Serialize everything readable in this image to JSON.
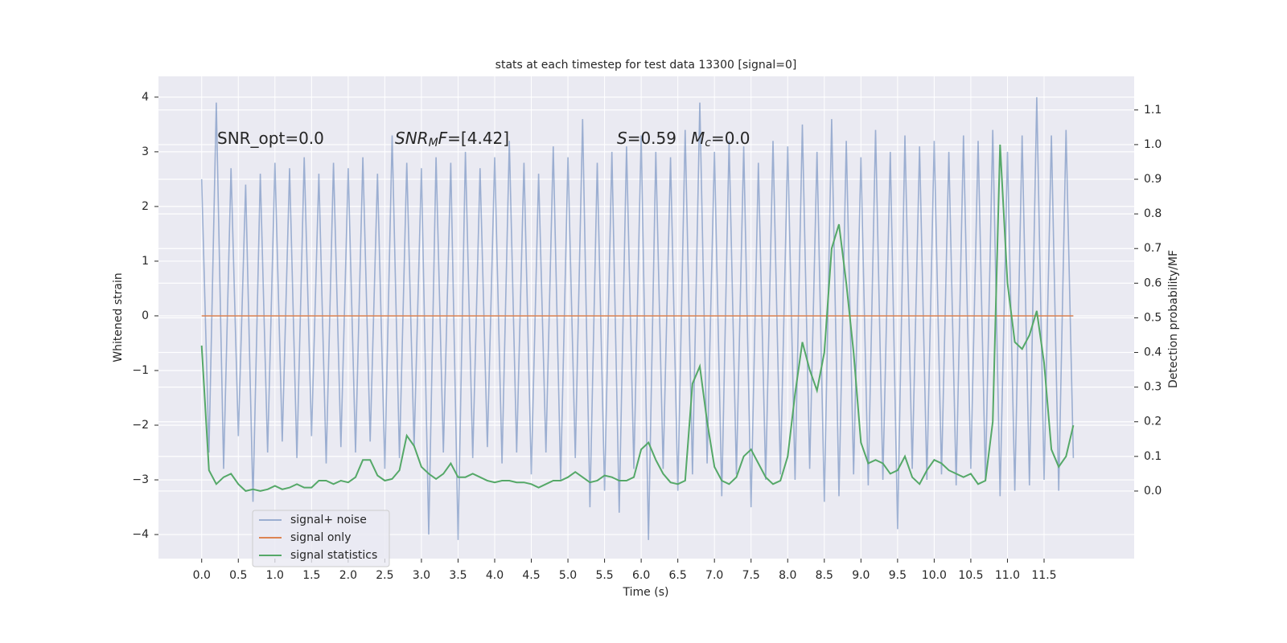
{
  "chart_data": {
    "type": "line",
    "title": "stats at each timestep for test data 13300 [signal=0]",
    "xlabel": "Time (s)",
    "ylabel": "Whitened strain",
    "y2label": "Detection probability/MF",
    "annotations": [
      [
        {
          "text": "SNR_opt=0.0",
          "style": "normal"
        }
      ],
      [
        {
          "text": "SNR",
          "style": "italic"
        },
        {
          "text": "M",
          "style": "sub"
        },
        {
          "text": "F",
          "style": "italic"
        },
        {
          "text": "=[4.42]",
          "style": "normal"
        }
      ],
      [
        {
          "text": "S",
          "style": "italic"
        },
        {
          "text": "=0.59",
          "style": "normal"
        }
      ],
      [
        {
          "text": "M",
          "style": "italic"
        },
        {
          "text": "c",
          "style": "sub"
        },
        {
          "text": "=0.0",
          "style": "normal"
        }
      ]
    ],
    "x": [
      0,
      0.1,
      0.2,
      0.3,
      0.4,
      0.5,
      0.6,
      0.7,
      0.8,
      0.9,
      1,
      1.1,
      1.2,
      1.3,
      1.4,
      1.5,
      1.6,
      1.7,
      1.8,
      1.9,
      2,
      2.1,
      2.2,
      2.3,
      2.4,
      2.5,
      2.6,
      2.7,
      2.8,
      2.9,
      3,
      3.1,
      3.2,
      3.3,
      3.4,
      3.5,
      3.6,
      3.7,
      3.8,
      3.9,
      4,
      4.1,
      4.2,
      4.3,
      4.4,
      4.5,
      4.6,
      4.7,
      4.8,
      4.9,
      5,
      5.1,
      5.2,
      5.3,
      5.4,
      5.5,
      5.6,
      5.7,
      5.8,
      5.9,
      6,
      6.1,
      6.2,
      6.3,
      6.4,
      6.5,
      6.6,
      6.7,
      6.8,
      6.9,
      7,
      7.1,
      7.2,
      7.3,
      7.4,
      7.5,
      7.6,
      7.7,
      7.8,
      7.9,
      8,
      8.1,
      8.2,
      8.3,
      8.4,
      8.5,
      8.6,
      8.7,
      8.8,
      8.9,
      9,
      9.1,
      9.2,
      9.3,
      9.4,
      9.5,
      9.6,
      9.7,
      9.8,
      9.9,
      10,
      10.1,
      10.2,
      10.3,
      10.4,
      10.5,
      10.6,
      10.7,
      10.8,
      10.9,
      11,
      11.1,
      11.2,
      11.3,
      11.4,
      11.5,
      11.6,
      11.7,
      11.8,
      11.9
    ],
    "series": [
      {
        "name": "signal+ noise",
        "color": "#4c72b0",
        "alpha": 0.5,
        "axis": "y",
        "values": [
          2.5,
          -2.5,
          3.9,
          -2.8,
          2.7,
          -2.2,
          2.4,
          -3.4,
          2.6,
          -2.5,
          2.8,
          -2.3,
          2.7,
          -2.6,
          2.9,
          -2.2,
          2.6,
          -2.7,
          2.8,
          -2.4,
          2.7,
          -2.5,
          2.9,
          -2.3,
          2.6,
          -2.8,
          3.3,
          -2.6,
          2.8,
          -2.4,
          2.7,
          -4.0,
          2.9,
          -2.5,
          2.8,
          -4.1,
          3.0,
          -2.6,
          2.7,
          -2.4,
          2.9,
          -2.7,
          3.2,
          -2.5,
          2.8,
          -2.9,
          2.6,
          -2.5,
          3.1,
          -3.0,
          2.9,
          -2.6,
          3.6,
          -3.5,
          2.8,
          -3.2,
          3.0,
          -3.6,
          3.1,
          -2.8,
          3.3,
          -4.1,
          3.0,
          -2.8,
          2.9,
          -3.2,
          3.4,
          -2.9,
          3.9,
          -2.7,
          3.0,
          -3.3,
          3.2,
          -2.9,
          3.1,
          -3.5,
          2.8,
          -3.0,
          3.2,
          -2.9,
          3.1,
          -3.0,
          3.5,
          -2.8,
          3.0,
          -3.4,
          3.6,
          -3.3,
          3.2,
          -2.9,
          2.9,
          -3.1,
          3.4,
          -3.0,
          3.0,
          -3.9,
          3.3,
          -2.8,
          3.1,
          -3.0,
          3.2,
          -2.9,
          3.0,
          -3.1,
          3.3,
          -2.8,
          3.2,
          -3.0,
          3.4,
          -3.3,
          3.0,
          -3.2,
          3.3,
          -3.1,
          4.0,
          -3.0,
          3.3,
          -3.2,
          3.4,
          -2.6
        ]
      },
      {
        "name": "signal only",
        "color": "#dd8452",
        "alpha": 1,
        "axis": "y",
        "x": [
          0,
          11.9
        ],
        "values": [
          0,
          0
        ]
      },
      {
        "name": "signal statistics",
        "color": "#55a868",
        "alpha": 1,
        "axis": "y2",
        "values": [
          0.42,
          0.06,
          0.02,
          0.04,
          0.05,
          0.02,
          0,
          0.005,
          0,
          0.005,
          0.015,
          0.005,
          0.01,
          0.02,
          0.01,
          0.01,
          0.03,
          0.03,
          0.02,
          0.03,
          0.025,
          0.04,
          0.09,
          0.09,
          0.045,
          0.03,
          0.035,
          0.06,
          0.16,
          0.13,
          0.07,
          0.05,
          0.035,
          0.05,
          0.08,
          0.04,
          0.04,
          0.05,
          0.04,
          0.03,
          0.025,
          0.03,
          0.03,
          0.025,
          0.025,
          0.02,
          0.01,
          0.02,
          0.03,
          0.03,
          0.04,
          0.055,
          0.04,
          0.025,
          0.03,
          0.045,
          0.04,
          0.03,
          0.03,
          0.04,
          0.12,
          0.14,
          0.09,
          0.05,
          0.025,
          0.02,
          0.03,
          0.31,
          0.36,
          0.2,
          0.07,
          0.03,
          0.02,
          0.04,
          0.1,
          0.12,
          0.08,
          0.04,
          0.02,
          0.03,
          0.1,
          0.28,
          0.43,
          0.35,
          0.29,
          0.4,
          0.7,
          0.77,
          0.6,
          0.4,
          0.14,
          0.08,
          0.09,
          0.08,
          0.05,
          0.06,
          0.1,
          0.04,
          0.02,
          0.06,
          0.09,
          0.08,
          0.06,
          0.05,
          0.04,
          0.05,
          0.02,
          0.03,
          0.2,
          1.0,
          0.6,
          0.43,
          0.41,
          0.45,
          0.52,
          0.37,
          0.12,
          0.07,
          0.1,
          0.19
        ]
      }
    ],
    "xlim": [
      -0.59,
      12.73
    ],
    "xticks": [
      {
        "value": 0,
        "label": "0.0"
      },
      0.5,
      {
        "value": 1,
        "label": "1.0"
      },
      1.5,
      {
        "value": 2,
        "label": "2.0"
      },
      2.5,
      {
        "value": 3,
        "label": "3.0"
      },
      3.5,
      {
        "value": 4,
        "label": "4.0"
      },
      4.5,
      {
        "value": 5,
        "label": "5.0"
      },
      5.5,
      {
        "value": 6,
        "label": "6.0"
      },
      6.5,
      {
        "value": 7,
        "label": "7.0"
      },
      7.5,
      {
        "value": 8,
        "label": "8.0"
      },
      8.5,
      {
        "value": 9,
        "label": "9.0"
      },
      9.5,
      {
        "value": 10,
        "label": "10.0"
      },
      10.5,
      {
        "value": 11,
        "label": "11.0"
      },
      11.5
    ],
    "ylim": [
      -4.44,
      4.38
    ],
    "yticks": [
      {
        "value": -4,
        "label": "−4"
      },
      {
        "value": -3,
        "label": "−3"
      },
      {
        "value": -2,
        "label": "−2"
      },
      {
        "value": -1,
        "label": "−1"
      },
      0,
      1,
      2,
      3,
      4
    ],
    "y2lim": [
      -0.195,
      1.197
    ],
    "y2ticks": [
      {
        "value": 0,
        "label": "0.0"
      },
      0.1,
      0.2,
      0.3,
      0.4,
      0.5,
      0.6,
      0.7,
      0.8,
      0.9,
      {
        "value": 1,
        "label": "1.0"
      },
      1.1
    ],
    "grid": true,
    "legend": "lower left"
  }
}
